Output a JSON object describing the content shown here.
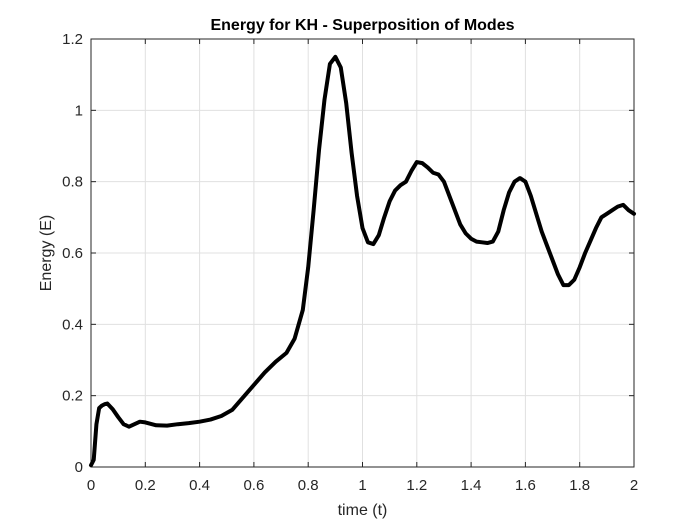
{
  "chart_data": {
    "type": "line",
    "title": "Energy for KH - Superposition of Modes",
    "xlabel": "time (t)",
    "ylabel": "Energy (E)",
    "xlim": [
      0,
      2
    ],
    "ylim": [
      0,
      1.2
    ],
    "grid": true,
    "legend": "none",
    "x_ticks": [
      "0",
      "0.2",
      "0.4",
      "0.6",
      "0.8",
      "1",
      "1.2",
      "1.4",
      "1.6",
      "1.8",
      "2"
    ],
    "y_ticks": [
      "0",
      "0.2",
      "0.4",
      "0.6",
      "0.8",
      "1",
      "1.2"
    ],
    "line_color": "#000000",
    "series": [
      {
        "x": [
          0,
          0.01,
          0.02,
          0.03,
          0.04,
          0.05,
          0.06,
          0.08,
          0.1,
          0.12,
          0.14,
          0.16,
          0.18,
          0.2,
          0.24,
          0.28,
          0.32,
          0.36,
          0.4,
          0.44,
          0.48,
          0.52,
          0.56,
          0.6,
          0.64,
          0.68,
          0.72,
          0.75,
          0.78,
          0.8,
          0.82,
          0.84,
          0.86,
          0.88,
          0.9,
          0.92,
          0.94,
          0.96,
          0.98,
          1.0,
          1.02,
          1.04,
          1.06,
          1.08,
          1.1,
          1.12,
          1.14,
          1.16,
          1.18,
          1.2,
          1.22,
          1.24,
          1.26,
          1.28,
          1.3,
          1.32,
          1.34,
          1.36,
          1.38,
          1.4,
          1.42,
          1.44,
          1.46,
          1.48,
          1.5,
          1.52,
          1.54,
          1.56,
          1.58,
          1.6,
          1.62,
          1.64,
          1.66,
          1.68,
          1.7,
          1.72,
          1.74,
          1.76,
          1.78,
          1.8,
          1.82,
          1.84,
          1.86,
          1.88,
          1.9,
          1.92,
          1.94,
          1.96,
          1.98,
          2.0
        ],
        "values": [
          0.005,
          0.02,
          0.12,
          0.165,
          0.172,
          0.176,
          0.178,
          0.162,
          0.14,
          0.12,
          0.113,
          0.12,
          0.127,
          0.125,
          0.117,
          0.116,
          0.12,
          0.123,
          0.127,
          0.133,
          0.143,
          0.16,
          0.195,
          0.23,
          0.265,
          0.295,
          0.32,
          0.36,
          0.44,
          0.56,
          0.72,
          0.89,
          1.03,
          1.13,
          1.15,
          1.12,
          1.02,
          0.88,
          0.76,
          0.67,
          0.63,
          0.625,
          0.65,
          0.7,
          0.745,
          0.775,
          0.79,
          0.8,
          0.83,
          0.855,
          0.852,
          0.84,
          0.825,
          0.82,
          0.8,
          0.76,
          0.72,
          0.68,
          0.655,
          0.64,
          0.632,
          0.63,
          0.628,
          0.632,
          0.66,
          0.72,
          0.77,
          0.8,
          0.81,
          0.8,
          0.76,
          0.71,
          0.66,
          0.62,
          0.58,
          0.54,
          0.51,
          0.51,
          0.525,
          0.56,
          0.6,
          0.635,
          0.67,
          0.7,
          0.71,
          0.72,
          0.73,
          0.735,
          0.72,
          0.71
        ]
      }
    ]
  }
}
